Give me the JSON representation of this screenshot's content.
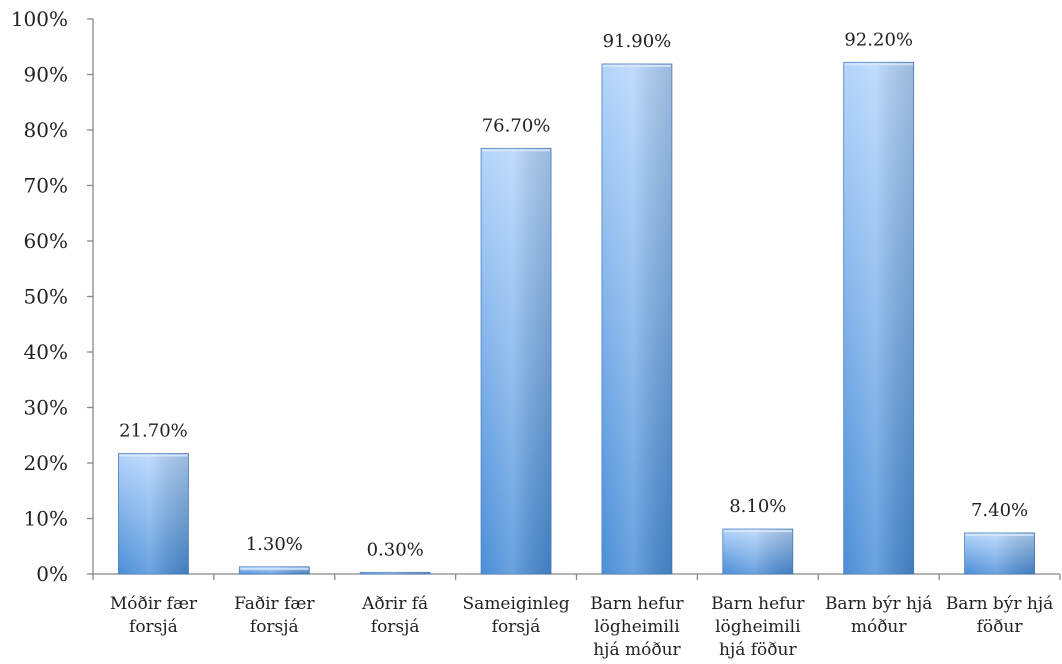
{
  "chart_data": {
    "type": "bar",
    "title": "",
    "xlabel": "",
    "ylabel": "",
    "categories": [
      [
        "Móðir fær",
        "forsjá"
      ],
      [
        "Faðir fær",
        "forsjá"
      ],
      [
        "Aðrir fá",
        "forsjá"
      ],
      [
        "Sameiginleg",
        "forsjá"
      ],
      [
        "Barn hefur",
        "lögheimili",
        "hjá móður"
      ],
      [
        "Barn hefur",
        "lögheimili",
        "hjá föður"
      ],
      [
        "Barn býr hjá",
        "móður"
      ],
      [
        "Barn býr hjá",
        "föður"
      ]
    ],
    "values": [
      21.7,
      1.3,
      0.3,
      76.7,
      91.9,
      8.1,
      92.2,
      7.4
    ],
    "data_labels": [
      "21.70%",
      "1.30%",
      "0.30%",
      "76.70%",
      "91.90%",
      "8.10%",
      "92.20%",
      "7.40%"
    ],
    "ylim": [
      0,
      100
    ],
    "yticks": [
      "0%",
      "10%",
      "20%",
      "30%",
      "40%",
      "50%",
      "60%",
      "70%",
      "80%",
      "90%",
      "100%"
    ],
    "grid": false,
    "legend": "none",
    "colors": {
      "bar_top": "#b3d4fb",
      "bar_bottom": "#4a8ed8",
      "axis": "#888888"
    }
  }
}
